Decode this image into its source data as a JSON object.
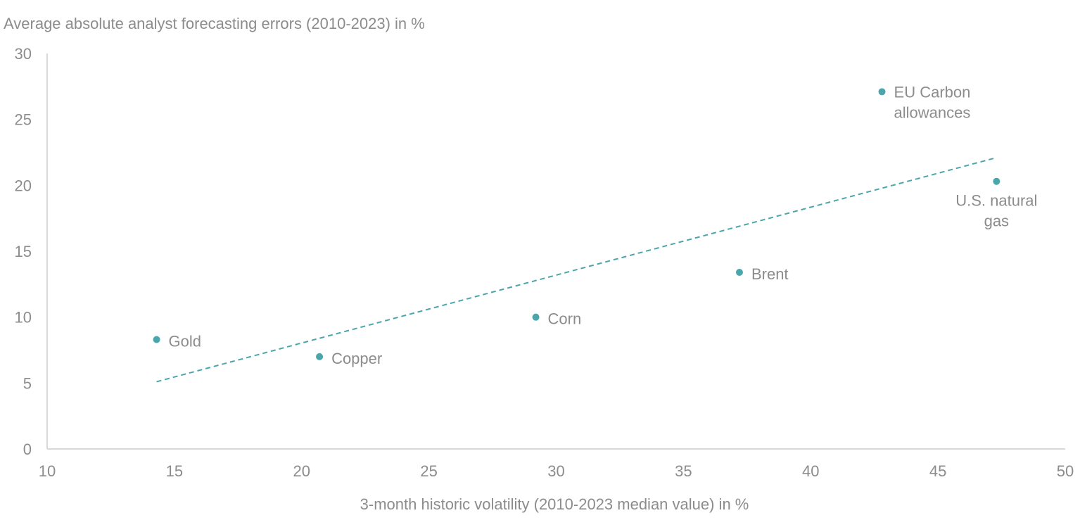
{
  "chart_data": {
    "type": "scatter",
    "title": "",
    "ylabel": "Average absolute analyst forecasting errors (2010-2023) in %",
    "xlabel": "3-month historic volatility (2010-2023 median value) in %",
    "xlim": [
      10,
      50
    ],
    "ylim": [
      0,
      30
    ],
    "x_ticks": [
      10,
      15,
      20,
      25,
      30,
      35,
      40,
      45,
      50
    ],
    "y_ticks": [
      0,
      5,
      10,
      15,
      20,
      25,
      30
    ],
    "grid": false,
    "legend": "none",
    "points": [
      {
        "label": "Gold",
        "x": 14.3,
        "y": 8.3
      },
      {
        "label": "Copper",
        "x": 20.7,
        "y": 7.0
      },
      {
        "label": "Corn",
        "x": 29.2,
        "y": 10.0
      },
      {
        "label": "Brent",
        "x": 37.2,
        "y": 13.4
      },
      {
        "label": "EU Carbon allowances",
        "label_lines": [
          "EU Carbon",
          "allowances"
        ],
        "x": 42.8,
        "y": 27.1
      },
      {
        "label": "U.S. natural gas",
        "label_lines": [
          "U.S. natural",
          "gas"
        ],
        "x": 47.3,
        "y": 20.3
      }
    ],
    "trendline": {
      "x1": 14.3,
      "y1": 5.1,
      "x2": 47.3,
      "y2": 22.1,
      "style": "dashed"
    },
    "colors": {
      "point": "#4aa6aa",
      "trendline": "#4aa6aa",
      "axis": "#d9d9d9",
      "text": "#8c8c8c"
    }
  }
}
